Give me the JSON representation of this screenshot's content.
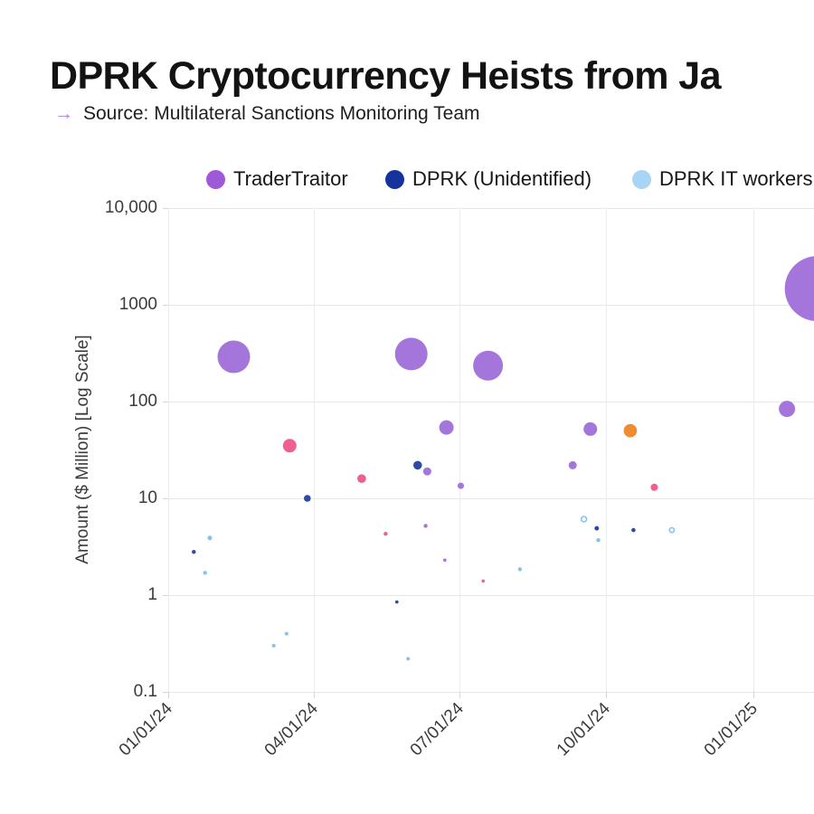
{
  "header": {
    "title": "DPRK Cryptocurrency Heists from Ja",
    "source_arrow": "→",
    "source_text": "Source: Multilateral Sanctions Monitoring Team",
    "source_arrow_color": "#b07de4"
  },
  "legend": [
    {
      "label": "TraderTraitor",
      "color": "#9d59d6"
    },
    {
      "label": "DPRK (Unidentified)",
      "color": "#16339d"
    },
    {
      "label": "DPRK IT workers",
      "color": "#a8d4f6"
    }
  ],
  "chart_data": {
    "type": "scatter",
    "subtype": "bubble",
    "grid": true,
    "legend_position": "top",
    "legend_truncated_at_right_edge": true,
    "x_axis": {
      "kind": "time",
      "tick_labels": [
        "01/01/24",
        "04/01/24",
        "07/01/24",
        "10/01/24",
        "01/01/25"
      ],
      "range_start": "2024-01-01"
    },
    "y_axis": {
      "label": "Amount ($ Million) [Log Scale]",
      "scale": "log",
      "tick_labels": [
        "10,000",
        "1000",
        "100",
        "10",
        "1",
        "0.1"
      ],
      "tick_values": [
        10000,
        1000,
        100,
        10,
        1,
        0.1
      ]
    },
    "series": [
      {
        "name": "TraderTraitor",
        "color": "#a476db",
        "points": [
          {
            "date": "2024-02-11",
            "amount_musd": 290,
            "r": 18
          },
          {
            "date": "2024-06-01",
            "amount_musd": 310,
            "r": 18
          },
          {
            "date": "2024-07-19",
            "amount_musd": 235,
            "r": 16.5
          },
          {
            "date": "2025-02-10",
            "amount_musd": 1470,
            "r": 36
          },
          {
            "date": "2025-01-22",
            "amount_musd": 84,
            "r": 9
          },
          {
            "date": "2024-06-23",
            "amount_musd": 54,
            "r": 8
          },
          {
            "date": "2024-09-21",
            "amount_musd": 52,
            "r": 7.5
          },
          {
            "date": "2024-09-10",
            "amount_musd": 22,
            "r": 4.5
          },
          {
            "date": "2024-06-11",
            "amount_musd": 19,
            "r": 4.5
          },
          {
            "date": "2024-07-02",
            "amount_musd": 13.5,
            "r": 3.5
          },
          {
            "date": "2024-06-10",
            "amount_musd": 5.2,
            "r": 2.2
          },
          {
            "date": "2024-06-22",
            "amount_musd": 2.3,
            "r": 1.8
          }
        ]
      },
      {
        "name": "",
        "color": "#ee6092",
        "points": [
          {
            "date": "2024-03-17",
            "amount_musd": 35,
            "r": 7.5
          },
          {
            "date": "2024-05-01",
            "amount_musd": 16,
            "r": 4.8
          },
          {
            "date": "2024-10-31",
            "amount_musd": 13,
            "r": 4
          },
          {
            "date": "2024-05-16",
            "amount_musd": 4.3,
            "r": 2.2
          },
          {
            "date": "2024-07-16",
            "amount_musd": 1.4,
            "r": 1.8
          }
        ]
      },
      {
        "name": "",
        "color": "#f08b31",
        "points": [
          {
            "date": "2024-10-16",
            "amount_musd": 50,
            "r": 7.3
          }
        ]
      },
      {
        "name": "DPRK (Unidentified)",
        "color": "#2b4ba6",
        "points": [
          {
            "date": "2024-06-05",
            "amount_musd": 22,
            "r": 4.8
          },
          {
            "date": "2024-03-28",
            "amount_musd": 10,
            "r": 3.8
          },
          {
            "date": "2024-09-25",
            "amount_musd": 4.9,
            "r": 2.5
          },
          {
            "date": "2024-10-18",
            "amount_musd": 4.7,
            "r": 2.3
          },
          {
            "date": "2024-01-17",
            "amount_musd": 2.8,
            "r": 2.2
          },
          {
            "date": "2024-05-23",
            "amount_musd": 0.85,
            "r": 1.8
          }
        ]
      },
      {
        "name": "DPRK IT workers",
        "color": "#85c2ef",
        "points": [
          {
            "date": "2024-09-17",
            "amount_musd": 6.1,
            "r": 3,
            "ring": true
          },
          {
            "date": "2024-11-11",
            "amount_musd": 4.7,
            "r": 2.6,
            "ring": true
          },
          {
            "date": "2024-01-27",
            "amount_musd": 3.9,
            "r": 2.5
          },
          {
            "date": "2024-09-26",
            "amount_musd": 3.7,
            "r": 2.2
          },
          {
            "date": "2024-08-08",
            "amount_musd": 1.85,
            "r": 2.2
          },
          {
            "date": "2024-01-24",
            "amount_musd": 1.7,
            "r": 2.2
          },
          {
            "date": "2024-03-15",
            "amount_musd": 0.4,
            "r": 2
          },
          {
            "date": "2024-03-07",
            "amount_musd": 0.3,
            "r": 2
          },
          {
            "date": "2024-05-30",
            "amount_musd": 0.22,
            "r": 2
          }
        ]
      }
    ]
  }
}
